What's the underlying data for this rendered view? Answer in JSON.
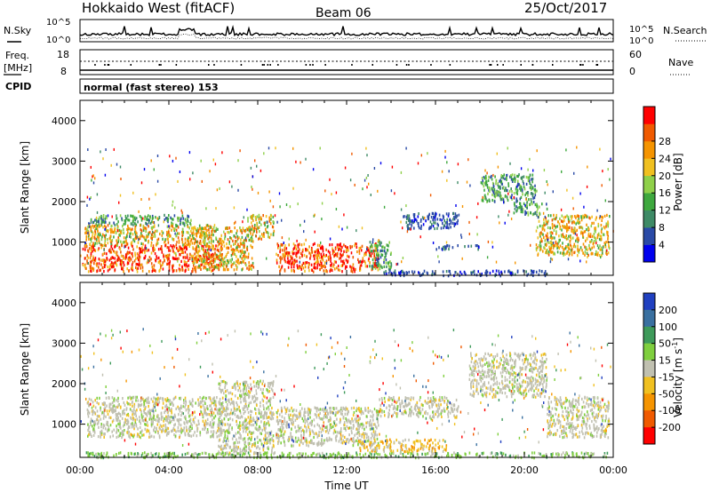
{
  "header": {
    "radar": "Hokkaido West (fitACF)",
    "beam": "Beam 06",
    "date": "25/Oct/2017"
  },
  "noise_panel": {
    "left_label": "N.Sky",
    "right_label": "N.Search",
    "left_ticks": [
      "10^5",
      "10^0"
    ],
    "right_ticks": [
      "10^5",
      "10^0"
    ]
  },
  "freq_panel": {
    "left_label_line1": "Freq.",
    "left_label_line2": "[MHz]",
    "right_label": "Nave",
    "left_ticks": [
      "18",
      "8"
    ],
    "right_ticks": [
      "60",
      "0"
    ]
  },
  "cpid_panel": {
    "label": "CPID",
    "text": "normal (fast stereo) 153"
  },
  "chart_data": [
    {
      "type": "heatmap",
      "variable": "Power",
      "ylabel": "Slant Range [km]",
      "ylim": [
        180,
        4500
      ],
      "yticks": [
        "1000",
        "2000",
        "3000",
        "4000"
      ],
      "colorbar": {
        "label": "Power [dB]",
        "ticks": [
          "4",
          "8",
          "12",
          "16",
          "20",
          "24",
          "28"
        ],
        "colors": [
          "#0000ee",
          "#2a4aa6",
          "#3e8a66",
          "#3ea83e",
          "#8fd04a",
          "#f0c020",
          "#f59400",
          "#f05a00",
          "#ff0000"
        ]
      },
      "echo_regions": [
        {
          "t": [
            0.3,
            5.0
          ],
          "r": [
            1450,
            1700
          ],
          "level": "mid"
        },
        {
          "t": [
            0.2,
            6.0
          ],
          "r": [
            950,
            1450
          ],
          "level": "high"
        },
        {
          "t": [
            0.1,
            6.5
          ],
          "r": [
            300,
            950
          ],
          "level": "very_high"
        },
        {
          "t": [
            5.0,
            7.8
          ],
          "r": [
            350,
            1400
          ],
          "level": "high"
        },
        {
          "t": [
            7.5,
            8.7
          ],
          "r": [
            1100,
            1700
          ],
          "level": "high"
        },
        {
          "t": [
            8.8,
            13.4
          ],
          "r": [
            300,
            1000
          ],
          "level": "very_high"
        },
        {
          "t": [
            13.0,
            14.0
          ],
          "r": [
            350,
            1050
          ],
          "level": "mid"
        },
        {
          "t": [
            13.5,
            21.0
          ],
          "r": [
            200,
            330
          ],
          "level": "low"
        },
        {
          "t": [
            14.5,
            17.0
          ],
          "r": [
            1350,
            1750
          ],
          "level": "low"
        },
        {
          "t": [
            16.0,
            18.0
          ],
          "r": [
            850,
            950
          ],
          "level": "low"
        },
        {
          "t": [
            18.0,
            20.5
          ],
          "r": [
            2000,
            2700
          ],
          "level": "mid"
        },
        {
          "t": [
            19.5,
            21.0
          ],
          "r": [
            1700,
            2000
          ],
          "level": "mid"
        },
        {
          "t": [
            20.5,
            23.8
          ],
          "r": [
            700,
            1700
          ],
          "level": "high"
        }
      ]
    },
    {
      "type": "heatmap",
      "variable": "Velocity",
      "ylabel": "Slant Range [km]",
      "xlabel": "Time UT",
      "ylim": [
        180,
        4500
      ],
      "xlim": [
        0,
        24
      ],
      "yticks": [
        "1000",
        "2000",
        "3000",
        "4000"
      ],
      "xticks": [
        "00:00",
        "04:00",
        "08:00",
        "12:00",
        "16:00",
        "20:00",
        "00:00"
      ],
      "colorbar": {
        "label": "Velocity [m s",
        "label_sup": "-1",
        "label_end": "]",
        "ticks": [
          "200",
          "100",
          "50",
          "15",
          "-15",
          "-50",
          "-100",
          "-200"
        ],
        "colors": [
          "#2040c0",
          "#3a70a0",
          "#3e9a5a",
          "#7fcf3e",
          "#c0c0b0",
          "#f0c020",
          "#f59400",
          "#f05a00",
          "#ff0000"
        ]
      },
      "echo_regions": [
        {
          "t": [
            0.3,
            6.5
          ],
          "r": [
            700,
            1700
          ],
          "level": "grey"
        },
        {
          "t": [
            6.2,
            8.7
          ],
          "r": [
            300,
            2100
          ],
          "level": "grey"
        },
        {
          "t": [
            8.8,
            13.4
          ],
          "r": [
            500,
            1450
          ],
          "level": "grey"
        },
        {
          "t": [
            13.4,
            17.0
          ],
          "r": [
            1200,
            1700
          ],
          "level": "grey"
        },
        {
          "t": [
            0.1,
            23.8
          ],
          "r": [
            200,
            330
          ],
          "level": "green"
        },
        {
          "t": [
            17.5,
            21.0
          ],
          "r": [
            1700,
            2800
          ],
          "level": "grey"
        },
        {
          "t": [
            21.0,
            23.8
          ],
          "r": [
            700,
            1700
          ],
          "level": "grey"
        },
        {
          "t": [
            12.5,
            16.5
          ],
          "r": [
            350,
            650
          ],
          "level": "orange"
        }
      ]
    }
  ]
}
